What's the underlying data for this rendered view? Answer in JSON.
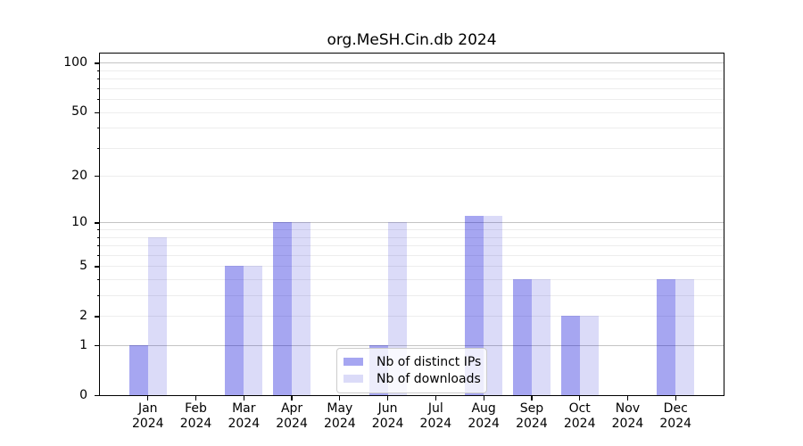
{
  "chart_data": {
    "type": "bar",
    "title": "org.MeSH.Cin.db 2024",
    "categories": [
      "Jan",
      "Feb",
      "Mar",
      "Apr",
      "May",
      "Jun",
      "Jul",
      "Aug",
      "Sep",
      "Oct",
      "Nov",
      "Dec"
    ],
    "x_sublabel": "2024",
    "series": [
      {
        "name": "Nb of distinct IPs",
        "color": "rgba(0,0,215,0.35)",
        "values": [
          1,
          0,
          5,
          10,
          0,
          1,
          0,
          11,
          4,
          2,
          0,
          4
        ]
      },
      {
        "name": "Nb of downloads",
        "color": "rgba(0,0,205,0.14)",
        "values": [
          8,
          0,
          5,
          10,
          0,
          10,
          0,
          11,
          4,
          2,
          0,
          4
        ]
      }
    ],
    "scale": "log1p",
    "ylim": [
      0,
      113
    ],
    "y_tick_labels": [
      0,
      1,
      2,
      5,
      10,
      20,
      50,
      100
    ],
    "y_minor_ticks": [
      3,
      4,
      6,
      7,
      8,
      9,
      30,
      40,
      60,
      70,
      80,
      90
    ],
    "y_major_gridline_values": [
      1,
      10,
      100
    ],
    "y_faint_gridline_values": [
      2,
      3,
      4,
      5,
      6,
      7,
      8,
      9,
      20,
      30,
      40,
      50,
      60,
      70,
      80,
      90
    ],
    "grid": true,
    "legend_position": "bottom-center",
    "colors": {
      "axis": "#000000",
      "major_grid": "#c4c4c4",
      "minor_grid": "#ededed",
      "background": "#ffffff"
    }
  }
}
